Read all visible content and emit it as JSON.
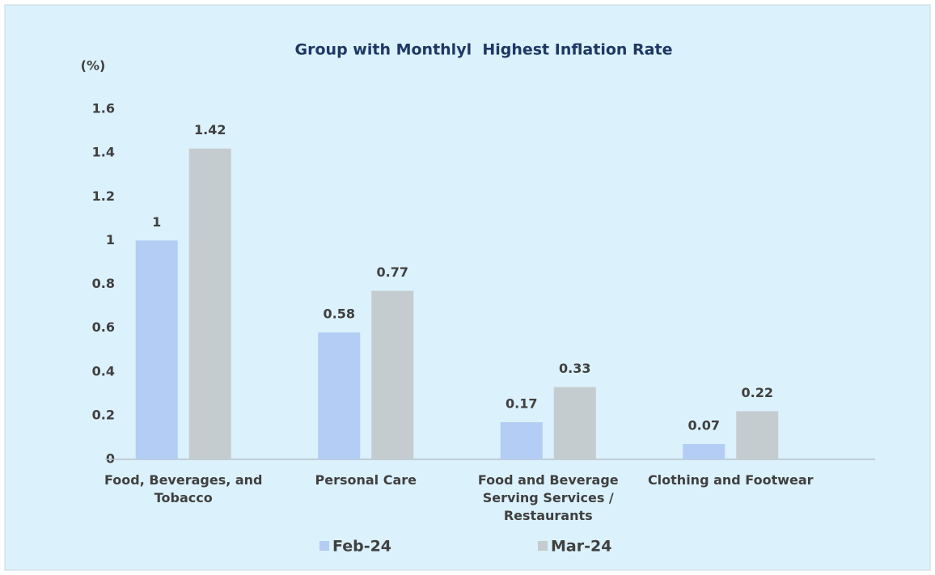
{
  "chart_data": {
    "type": "bar",
    "title": "Group with Monthlyl  Highest Inflation Rate",
    "y_label": "(%)",
    "categories": [
      "Food, Beverages, and Tobacco",
      "Personal Care",
      "Food and Beverage Serving Services / Restaurants",
      "Clothing and Footwear"
    ],
    "series": [
      {
        "name": "Feb-24",
        "color": "#b4cdf5",
        "values": [
          1,
          0.58,
          0.17,
          0.07
        ]
      },
      {
        "name": "Mar-24",
        "color": "#c5ccd0",
        "values": [
          1.42,
          0.77,
          0.33,
          0.22
        ]
      }
    ],
    "ylim": [
      0,
      1.6
    ],
    "yticks": [
      0,
      0.2,
      0.4,
      0.6,
      0.8,
      1,
      1.2,
      1.4,
      1.6
    ],
    "grid": false,
    "legend": "bottom"
  }
}
